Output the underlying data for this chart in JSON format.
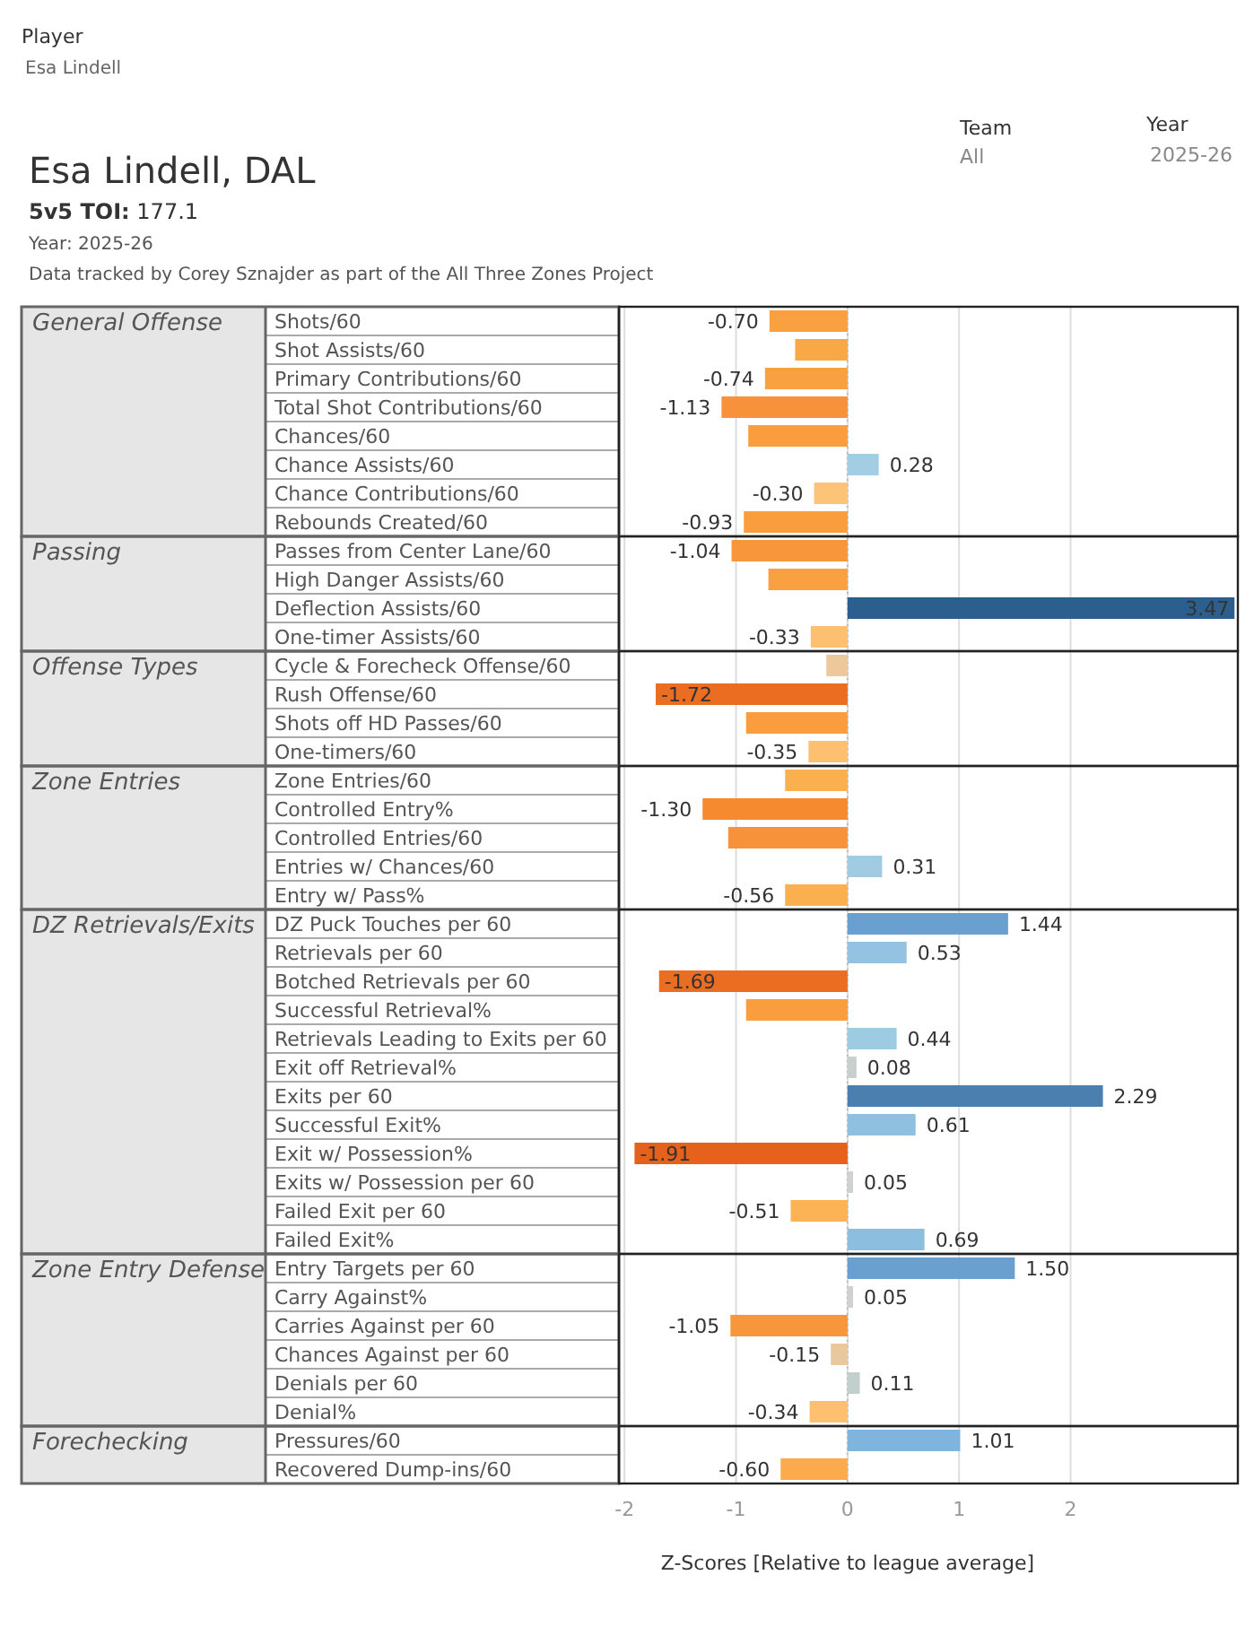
{
  "chart_data": {
    "type": "bar",
    "orientation": "horizontal",
    "title": "Esa Lindell, DAL",
    "subtitle": "5v5 TOI: 177.1",
    "categories": [
      "Shots/60",
      "Shot Assists/60",
      "Primary Contributions/60",
      "Total Shot Contributions/60",
      "Chances/60",
      "Chance Assists/60",
      "Chance Contributions/60",
      "Rebounds Created/60",
      "Passes from Center Lane/60",
      "High Danger Assists/60",
      "Deflection Assists/60",
      "One-timer Assists/60",
      "Cycle & Forecheck Offense/60",
      "Rush Offense/60",
      "Shots off HD Passes/60",
      "One-timers/60",
      "Zone Entries/60",
      "Controlled Entry%",
      "Controlled Entries/60",
      "Entries w/ Chances/60",
      "Entry w/ Pass%",
      "DZ Puck Touches per 60",
      "Retrievals per 60",
      "Botched Retrievals per 60",
      "Successful Retrieval%",
      "Retrievals Leading to Exits per 60",
      "Exit off Retrieval%",
      "Exits per 60",
      "Successful Exit%",
      "Exit w/ Possession%",
      "Exits w/ Possession per 60",
      "Failed Exit per 60",
      "Failed Exit%",
      "Entry Targets per 60",
      "Carry Against%",
      "Carries Against per 60",
      "Chances Against per 60",
      "Denials per 60",
      "Denial%",
      "Pressures/60",
      "Recovered Dump-ins/60"
    ],
    "values": [
      -0.7,
      -0.47,
      -0.74,
      -1.13,
      -0.89,
      0.28,
      -0.3,
      -0.93,
      -1.04,
      -0.71,
      3.47,
      -0.33,
      -0.19,
      -1.72,
      -0.91,
      -0.35,
      -0.56,
      -1.3,
      -1.07,
      0.31,
      -0.56,
      1.44,
      0.53,
      -1.69,
      -0.91,
      0.44,
      0.08,
      2.29,
      0.61,
      -1.91,
      0.05,
      -0.51,
      0.69,
      1.5,
      0.05,
      -1.05,
      -0.15,
      0.11,
      -0.34,
      1.01,
      -0.6
    ],
    "colors": [
      "#f9a040",
      "#f9a848",
      "#f9a040",
      "#f7923a",
      "#f99d3e",
      "#a3cde2",
      "#fdc479",
      "#f99d3e",
      "#f7963a",
      "#f9a040",
      "#2d5f8e",
      "#fcc070",
      "#ecc89a",
      "#ea6d22",
      "#f99d3e",
      "#fcc070",
      "#fbb050",
      "#f58a2e",
      "#f7923a",
      "#a0cbe2",
      "#fbb050",
      "#6aa0cf",
      "#93c3e0",
      "#ea6d22",
      "#f99d3e",
      "#9ccbe2",
      "#c8cfcc",
      "#4a7fb0",
      "#8fc0df",
      "#e5611c",
      "#cfd3d0",
      "#fbb356",
      "#8cbfdf",
      "#6aa0cf",
      "#cfd3d0",
      "#f7963a",
      "#e9c89f",
      "#c3cfcc",
      "#fcc070",
      "#7fb4dc",
      "#fbab4c"
    ],
    "value_labels": [
      "-0.70",
      null,
      "-0.74",
      "-1.13",
      null,
      "0.28",
      "-0.30",
      "-0.93",
      "-1.04",
      null,
      "3.47",
      "-0.33",
      null,
      "-1.72",
      null,
      "-0.35",
      null,
      "-1.30",
      null,
      "0.31",
      "-0.56",
      "1.44",
      "0.53",
      "-1.69",
      null,
      "0.44",
      "0.08",
      "2.29",
      "0.61",
      "-1.91",
      "0.05",
      "-0.51",
      "0.69",
      "1.50",
      "0.05",
      "-1.05",
      "-0.15",
      "0.11",
      "-0.34",
      "1.01",
      "-0.60"
    ],
    "xlim": [
      -2.05,
      3.5
    ],
    "xticks": [
      -2,
      -1,
      0,
      1,
      2
    ],
    "grid": "x",
    "xlabel": "Z-Scores [Relative to league average]",
    "ref_lines": [
      {
        "axis": "x",
        "value": 0,
        "color": "#bbbbbb",
        "line_style": "dotted"
      }
    ],
    "annotations": [
      "Player",
      "Esa Lindell",
      "Team",
      "All",
      "Year",
      "2025-26",
      "Year: 2025-26",
      "Data tracked by Corey Sznajder as part of the All Three Zones Project",
      "General Offense",
      "Passing",
      "Offense Types",
      "Zone Entries",
      "DZ Retrievals/Exits",
      "Zone Entry Defense",
      "Forechecking"
    ]
  }
}
